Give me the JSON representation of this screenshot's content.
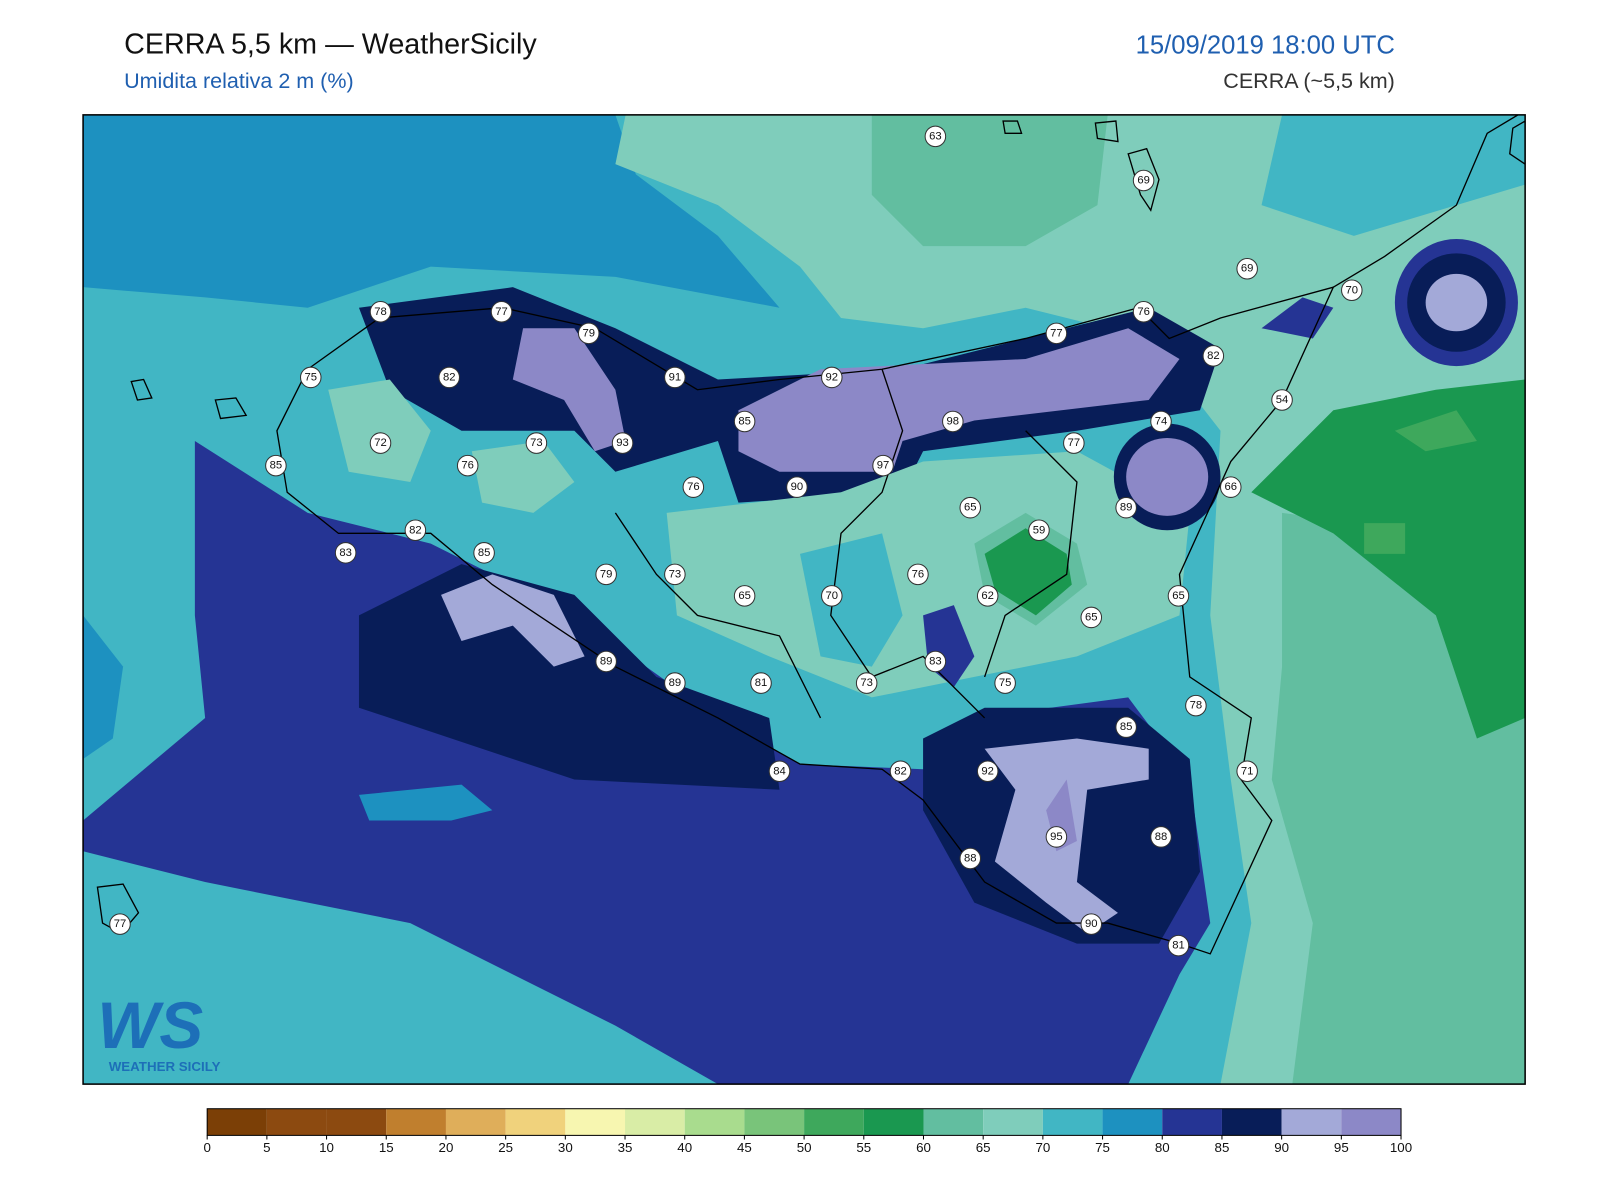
{
  "header": {
    "title": "CERRA 5,5 km — WeatherSicily",
    "subtitle": "Umidita relativa 2 m (%)",
    "datetime": "15/09/2019 18:00 UTC",
    "model": "CERRA (~5,5 km)"
  },
  "logo": {
    "mark": "WS",
    "name": "WEATHER SICILY"
  },
  "stations": [
    63,
    69,
    69,
    70,
    76,
    77,
    82,
    78,
    77,
    79,
    75,
    82,
    91,
    92,
    54,
    85,
    98,
    74,
    72,
    73,
    93,
    77,
    85,
    76,
    97,
    76,
    90,
    66,
    89,
    65,
    82,
    59,
    83,
    85,
    79,
    73,
    76,
    65,
    70,
    62,
    65,
    65,
    89,
    83,
    89,
    81,
    73,
    75,
    78,
    85,
    84,
    82,
    92,
    71,
    95,
    88,
    88,
    90,
    77,
    81
  ],
  "colorbar": {
    "ticks": [
      0,
      5,
      10,
      15,
      20,
      25,
      30,
      35,
      40,
      45,
      50,
      55,
      60,
      65,
      70,
      75,
      80,
      85,
      90,
      95,
      100
    ],
    "colors": [
      "#7b3f06",
      "#8c4a10",
      "#8c4a10",
      "#c07f2e",
      "#dfae5a",
      "#f0d27c",
      "#f7f6b0",
      "#d9eda6",
      "#a9dc8e",
      "#79c47a",
      "#3ea85c",
      "#1a9850",
      "#62bea0",
      "#7fcdbb",
      "#41b6c4",
      "#1d91c0",
      "#253494",
      "#081d58",
      "#a3a9d8",
      "#8c88c7"
    ]
  }
}
